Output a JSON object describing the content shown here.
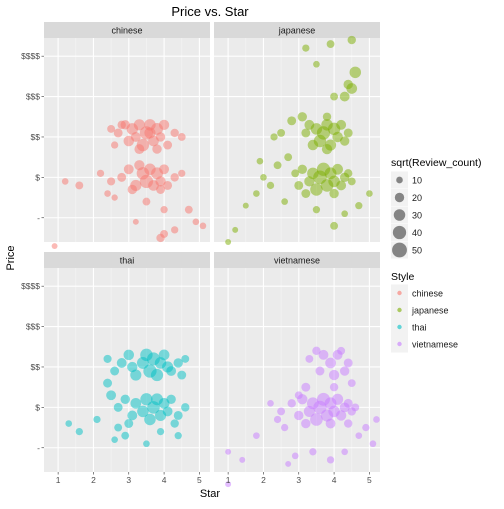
{
  "chart_data": {
    "type": "scatter",
    "title": "Price vs. Star",
    "xlabel": "Star",
    "ylabel": "Price",
    "x_ticks": [
      1,
      2,
      3,
      4,
      5
    ],
    "xlim": [
      0.6,
      5.3
    ],
    "y_tick_labels": [
      "-",
      "$",
      "$$",
      "$$$",
      "$$$$"
    ],
    "y_tick_values": [
      0,
      1,
      2,
      3,
      4
    ],
    "ylim": [
      -0.6,
      4.45
    ],
    "facets": [
      "chinese",
      "japanese",
      "thai",
      "vietnamese"
    ],
    "colors": {
      "chinese": "#F8766D",
      "japanese": "#7CAE00",
      "thai": "#00BFC4",
      "vietnamese": "#C77CFF"
    },
    "size_legend": {
      "title": "sqrt(Review_count)",
      "values": [
        10,
        20,
        30,
        40,
        50
      ]
    },
    "color_legend": {
      "title": "Style",
      "items": [
        "chinese",
        "japanese",
        "thai",
        "vietnamese"
      ]
    },
    "series": [
      {
        "name": "chinese",
        "points": [
          [
            2.5,
            2.2,
            14
          ],
          [
            2.7,
            2.1,
            18
          ],
          [
            2.9,
            2.3,
            20
          ],
          [
            3.0,
            1.9,
            25
          ],
          [
            3.1,
            2.2,
            30
          ],
          [
            3.2,
            2.0,
            22
          ],
          [
            3.3,
            2.3,
            28
          ],
          [
            3.4,
            1.8,
            35
          ],
          [
            3.5,
            2.1,
            40
          ],
          [
            3.6,
            2.3,
            30
          ],
          [
            3.7,
            1.9,
            26
          ],
          [
            3.8,
            2.2,
            32
          ],
          [
            3.9,
            2.0,
            20
          ],
          [
            4.0,
            2.3,
            24
          ],
          [
            4.1,
            1.8,
            18
          ],
          [
            4.3,
            2.1,
            16
          ],
          [
            4.5,
            2.0,
            14
          ],
          [
            2.6,
            1.8,
            12
          ],
          [
            3.3,
            1.7,
            22
          ],
          [
            3.8,
            1.7,
            20
          ],
          [
            2.8,
            2.3,
            16
          ],
          [
            3.6,
            2.1,
            28
          ],
          [
            2.2,
            1.1,
            12
          ],
          [
            2.5,
            0.9,
            15
          ],
          [
            2.8,
            1.0,
            18
          ],
          [
            3.0,
            1.2,
            22
          ],
          [
            3.2,
            0.8,
            28
          ],
          [
            3.4,
            1.1,
            35
          ],
          [
            3.5,
            0.9,
            40
          ],
          [
            3.6,
            1.2,
            30
          ],
          [
            3.7,
            0.8,
            26
          ],
          [
            3.8,
            1.1,
            32
          ],
          [
            3.9,
            0.9,
            24
          ],
          [
            4.0,
            1.2,
            22
          ],
          [
            4.1,
            0.8,
            18
          ],
          [
            4.3,
            1.0,
            16
          ],
          [
            4.5,
            1.1,
            12
          ],
          [
            3.1,
            0.7,
            20
          ],
          [
            3.9,
            0.7,
            18
          ],
          [
            3.3,
            1.3,
            24
          ],
          [
            1.6,
            0.8,
            14
          ],
          [
            1.2,
            0.9,
            10
          ],
          [
            0.9,
            -0.7,
            8
          ],
          [
            2.4,
            0.6,
            10
          ],
          [
            3.5,
            0.4,
            14
          ],
          [
            4.0,
            0.2,
            12
          ],
          [
            4.3,
            -0.3,
            12
          ],
          [
            3.9,
            -0.5,
            16
          ],
          [
            4.0,
            -0.4,
            14
          ],
          [
            4.7,
            0.2,
            14
          ],
          [
            4.9,
            -0.1,
            10
          ],
          [
            5.1,
            -0.2,
            10
          ],
          [
            3.2,
            -0.1,
            8
          ],
          [
            2.6,
            0.5,
            9
          ]
        ]
      },
      {
        "name": "japanese",
        "points": [
          [
            3.2,
            2.1,
            18
          ],
          [
            3.4,
            1.8,
            25
          ],
          [
            3.5,
            2.2,
            30
          ],
          [
            3.6,
            1.9,
            35
          ],
          [
            3.7,
            2.1,
            40
          ],
          [
            3.8,
            2.3,
            30
          ],
          [
            3.9,
            1.8,
            28
          ],
          [
            4.0,
            2.2,
            35
          ],
          [
            4.1,
            2.0,
            25
          ],
          [
            4.2,
            2.3,
            22
          ],
          [
            4.3,
            1.9,
            20
          ],
          [
            4.4,
            2.1,
            18
          ],
          [
            3.3,
            2.3,
            22
          ],
          [
            3.8,
            1.7,
            24
          ],
          [
            2.9,
            1.1,
            14
          ],
          [
            3.0,
            0.8,
            18
          ],
          [
            3.1,
            1.2,
            20
          ],
          [
            3.3,
            0.9,
            24
          ],
          [
            3.4,
            1.1,
            30
          ],
          [
            3.5,
            0.7,
            35
          ],
          [
            3.6,
            1.0,
            42
          ],
          [
            3.7,
            1.2,
            40
          ],
          [
            3.8,
            0.8,
            36
          ],
          [
            3.9,
            1.1,
            32
          ],
          [
            4.0,
            0.9,
            30
          ],
          [
            4.1,
            1.2,
            26
          ],
          [
            4.2,
            0.8,
            22
          ],
          [
            4.3,
            1.0,
            20
          ],
          [
            4.4,
            1.1,
            16
          ],
          [
            4.5,
            0.9,
            14
          ],
          [
            3.2,
            0.6,
            18
          ],
          [
            4.0,
            0.6,
            20
          ],
          [
            4.3,
            3.0,
            22
          ],
          [
            4.4,
            3.3,
            20
          ],
          [
            4.5,
            3.2,
            26
          ],
          [
            4.6,
            3.6,
            30
          ],
          [
            4.5,
            4.4,
            16
          ],
          [
            3.5,
            3.8,
            10
          ],
          [
            3.2,
            4.2,
            12
          ],
          [
            3.9,
            4.3,
            14
          ],
          [
            4.0,
            3.0,
            14
          ],
          [
            3.8,
            2.5,
            16
          ],
          [
            3.1,
            2.5,
            20
          ],
          [
            2.8,
            2.4,
            18
          ],
          [
            2.5,
            2.1,
            14
          ],
          [
            2.3,
            2.0,
            12
          ],
          [
            2.7,
            1.5,
            14
          ],
          [
            2.0,
            1.0,
            10
          ],
          [
            2.2,
            0.8,
            12
          ],
          [
            1.8,
            0.6,
            10
          ],
          [
            1.5,
            0.3,
            8
          ],
          [
            1.2,
            -0.3,
            8
          ],
          [
            1.0,
            -0.6,
            8
          ],
          [
            2.6,
            0.4,
            10
          ],
          [
            3.5,
            0.2,
            12
          ],
          [
            4.0,
            -0.2,
            14
          ],
          [
            4.3,
            0.1,
            10
          ],
          [
            4.7,
            0.3,
            12
          ],
          [
            5.0,
            0.6,
            10
          ],
          [
            2.4,
            1.3,
            14
          ],
          [
            1.9,
            1.4,
            10
          ]
        ]
      },
      {
        "name": "thai",
        "points": [
          [
            2.4,
            2.2,
            15
          ],
          [
            2.6,
            1.9,
            18
          ],
          [
            2.8,
            2.1,
            22
          ],
          [
            3.0,
            2.3,
            25
          ],
          [
            3.2,
            1.8,
            28
          ],
          [
            3.4,
            2.1,
            32
          ],
          [
            3.5,
            2.3,
            35
          ],
          [
            3.6,
            1.9,
            40
          ],
          [
            3.7,
            2.2,
            38
          ],
          [
            3.8,
            1.8,
            34
          ],
          [
            3.9,
            2.1,
            30
          ],
          [
            4.0,
            2.3,
            26
          ],
          [
            4.2,
            1.9,
            22
          ],
          [
            4.4,
            2.1,
            20
          ],
          [
            4.5,
            1.8,
            18
          ],
          [
            4.6,
            2.2,
            14
          ],
          [
            3.1,
            2.0,
            24
          ],
          [
            4.1,
            2.0,
            28
          ],
          [
            2.4,
            1.6,
            18
          ],
          [
            2.5,
            1.3,
            22
          ],
          [
            2.7,
            1.0,
            18
          ],
          [
            2.9,
            1.2,
            20
          ],
          [
            3.1,
            0.8,
            22
          ],
          [
            3.2,
            1.1,
            26
          ],
          [
            3.4,
            0.9,
            30
          ],
          [
            3.5,
            1.2,
            34
          ],
          [
            3.6,
            0.7,
            30
          ],
          [
            3.7,
            1.0,
            36
          ],
          [
            3.8,
            1.2,
            32
          ],
          [
            3.9,
            0.8,
            28
          ],
          [
            4.0,
            1.1,
            26
          ],
          [
            4.1,
            0.9,
            22
          ],
          [
            4.2,
            1.2,
            20
          ],
          [
            4.4,
            0.8,
            18
          ],
          [
            4.6,
            1.0,
            16
          ],
          [
            3.0,
            0.6,
            18
          ],
          [
            4.3,
            0.6,
            16
          ],
          [
            2.7,
            0.5,
            14
          ],
          [
            1.3,
            0.6,
            10
          ],
          [
            1.6,
            0.4,
            12
          ],
          [
            2.1,
            0.7,
            12
          ],
          [
            2.9,
            0.3,
            14
          ],
          [
            3.9,
            0.4,
            12
          ],
          [
            4.4,
            0.3,
            12
          ],
          [
            2.6,
            0.2,
            10
          ],
          [
            3.5,
            0.1,
            10
          ]
        ]
      },
      {
        "name": "vietnamese",
        "points": [
          [
            3.3,
            2.2,
            14
          ],
          [
            3.6,
            1.9,
            18
          ],
          [
            3.7,
            2.3,
            22
          ],
          [
            3.9,
            2.1,
            26
          ],
          [
            4.0,
            1.8,
            24
          ],
          [
            4.1,
            2.3,
            22
          ],
          [
            4.3,
            1.9,
            20
          ],
          [
            4.4,
            2.1,
            18
          ],
          [
            3.5,
            2.4,
            16
          ],
          [
            4.2,
            2.4,
            14
          ],
          [
            3.2,
            1.5,
            18
          ],
          [
            3.0,
            1.3,
            14
          ],
          [
            4.5,
            1.6,
            14
          ],
          [
            4.0,
            1.5,
            16
          ],
          [
            2.8,
            1.1,
            16
          ],
          [
            3.0,
            0.8,
            20
          ],
          [
            3.1,
            1.2,
            24
          ],
          [
            3.3,
            0.9,
            28
          ],
          [
            3.4,
            1.1,
            32
          ],
          [
            3.5,
            0.7,
            36
          ],
          [
            3.6,
            1.0,
            40
          ],
          [
            3.7,
            1.2,
            38
          ],
          [
            3.8,
            0.8,
            34
          ],
          [
            3.9,
            1.1,
            32
          ],
          [
            4.0,
            0.9,
            30
          ],
          [
            4.1,
            1.2,
            28
          ],
          [
            4.2,
            0.8,
            24
          ],
          [
            4.3,
            1.0,
            22
          ],
          [
            4.4,
            1.1,
            18
          ],
          [
            4.5,
            0.9,
            16
          ],
          [
            4.6,
            1.0,
            14
          ],
          [
            3.2,
            0.6,
            20
          ],
          [
            3.9,
            0.6,
            22
          ],
          [
            4.4,
            0.6,
            16
          ],
          [
            2.2,
            1.1,
            10
          ],
          [
            2.4,
            0.7,
            12
          ],
          [
            2.6,
            0.5,
            12
          ],
          [
            2.5,
            0.9,
            14
          ],
          [
            1.8,
            0.3,
            10
          ],
          [
            1.4,
            -0.3,
            8
          ],
          [
            1.0,
            -0.1,
            8
          ],
          [
            1.0,
            -0.9,
            8
          ],
          [
            2.7,
            -0.4,
            8
          ],
          [
            2.9,
            -0.2,
            10
          ],
          [
            3.4,
            -0.1,
            12
          ],
          [
            3.9,
            -0.3,
            12
          ],
          [
            4.3,
            -0.1,
            10
          ],
          [
            4.7,
            0.3,
            10
          ],
          [
            4.9,
            0.5,
            12
          ],
          [
            5.1,
            0.1,
            10
          ],
          [
            5.2,
            0.7,
            10
          ]
        ]
      }
    ]
  }
}
